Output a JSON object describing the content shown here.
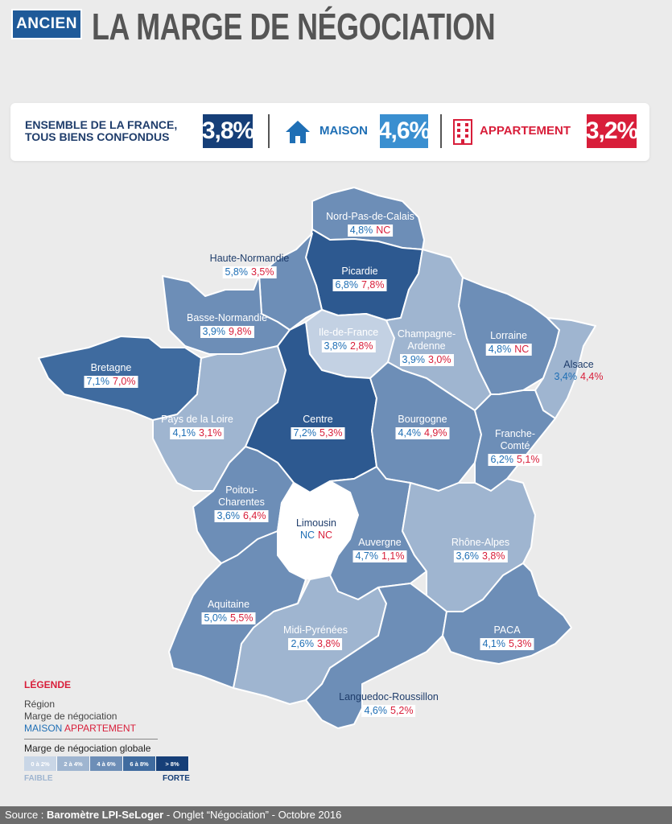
{
  "header": {
    "badge": "ANCIEN",
    "title": "LA MARGE DE NÉGOCIATION"
  },
  "summary": {
    "france_label": "ENSEMBLE DE LA FRANCE, TOUS BIENS CONFONDUS",
    "france_value": "3,8%",
    "maison_label": "MAISON",
    "maison_value": "4,6%",
    "appartement_label": "APPARTEMENT",
    "appartement_value": "3,2%"
  },
  "colors": {
    "c1": "#c9d6e6",
    "c2": "#9fb5d0",
    "c3": "#6d8eb7",
    "c4": "#3f6b9f",
    "c5": "#163f78",
    "maison": "#1f6fb5",
    "appartement": "#d81e3a"
  },
  "regions": [
    {
      "name": "Nord-Pas-de-Calais",
      "maison": "4,8%",
      "appartement": "NC",
      "shade": "c3"
    },
    {
      "name": "Haute-Normandie",
      "maison": "5,8%",
      "appartement": "3,5%",
      "shade": "c3"
    },
    {
      "name": "Picardie",
      "maison": "6,8%",
      "appartement": "7,8%",
      "shade": "c5"
    },
    {
      "name": "Basse-Normandie",
      "maison": "3,9%",
      "appartement": "9,8%",
      "shade": "c3"
    },
    {
      "name": "Ile-de-France",
      "maison": "3,8%",
      "appartement": "2,8%",
      "shade": "c1"
    },
    {
      "name": "Champagne-Ardenne",
      "maison": "3,9%",
      "appartement": "3,0%",
      "shade": "c2"
    },
    {
      "name": "Lorraine",
      "maison": "4,8%",
      "appartement": "NC",
      "shade": "c3"
    },
    {
      "name": "Alsace",
      "maison": "3,4%",
      "appartement": "4,4%",
      "shade": "c2"
    },
    {
      "name": "Bretagne",
      "maison": "7,1%",
      "appartement": "7,0%",
      "shade": "c4"
    },
    {
      "name": "Pays de la Loire",
      "maison": "4,1%",
      "appartement": "3,1%",
      "shade": "c2"
    },
    {
      "name": "Centre",
      "maison": "7,2%",
      "appartement": "5,3%",
      "shade": "c4"
    },
    {
      "name": "Bourgogne",
      "maison": "4,4%",
      "appartement": "4,9%",
      "shade": "c3"
    },
    {
      "name": "Franche-Comté",
      "maison": "6,2%",
      "appartement": "5,1%",
      "shade": "c3"
    },
    {
      "name": "Poitou-Charentes",
      "maison": "3,6%",
      "appartement": "6,4%",
      "shade": "c3"
    },
    {
      "name": "Limousin",
      "maison": "NC",
      "appartement": "NC",
      "shade": "none"
    },
    {
      "name": "Auvergne",
      "maison": "4,7%",
      "appartement": "1,1%",
      "shade": "c3"
    },
    {
      "name": "Rhône-Alpes",
      "maison": "3,6%",
      "appartement": "3,8%",
      "shade": "c2"
    },
    {
      "name": "Aquitaine",
      "maison": "5,0%",
      "appartement": "5,5%",
      "shade": "c3"
    },
    {
      "name": "Midi-Pyrénées",
      "maison": "2,6%",
      "appartement": "3,8%",
      "shade": "c2"
    },
    {
      "name": "PACA",
      "maison": "4,1%",
      "appartement": "5,3%",
      "shade": "c3"
    },
    {
      "name": "Languedoc-Roussillon",
      "maison": "4,6%",
      "appartement": "5,2%",
      "shade": "c3"
    }
  ],
  "legend": {
    "title": "LÉGENDE",
    "line_region": "Région",
    "line_marge": "Marge de négociation",
    "maison": "MAISON",
    "appartement": "APPARTEMENT",
    "scale_title": "Marge de négociation globale",
    "scale": [
      "0 à 2%",
      "2 à 4%",
      "4 à 6%",
      "6 à 8%",
      "> 8%"
    ],
    "low": "FAIBLE",
    "high": "FORTE"
  },
  "footer": {
    "prefix": "Source : ",
    "source": "Baromètre LPI-SeLoger",
    "suffix": " - Onglet “Négociation” - Octobre 2016"
  }
}
